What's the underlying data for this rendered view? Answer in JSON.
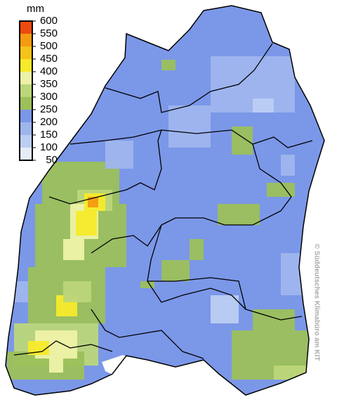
{
  "legend": {
    "unit": "mm",
    "ticks": [
      50,
      100,
      150,
      200,
      250,
      300,
      350,
      400,
      450,
      500,
      550,
      600
    ],
    "colors": [
      "#e6ecf8",
      "#bccdf2",
      "#9fb5ee",
      "#7b97e8",
      "#9cc05a",
      "#bcd67a",
      "#eef2a8",
      "#f7ea2a",
      "#f7c21a",
      "#f59b12",
      "#ee4a10"
    ]
  },
  "credit": "© Süddeutsches Klimabüro am KIT"
}
